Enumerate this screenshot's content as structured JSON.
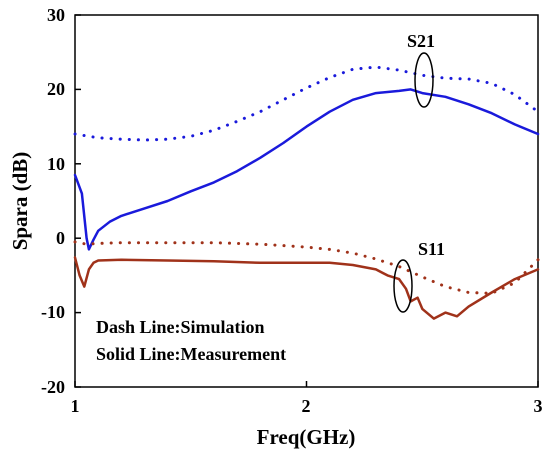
{
  "chart_data": {
    "type": "line",
    "xlabel": "Freq(GHz)",
    "ylabel": "Spara (dB)",
    "xlim": [
      1,
      3
    ],
    "ylim": [
      -20,
      30
    ],
    "x_ticks": [
      "1",
      "2",
      "3"
    ],
    "y_ticks": [
      "30",
      "20",
      "10",
      "0",
      "-10",
      "-20"
    ],
    "grid": false,
    "annotations": [
      "S21",
      "S11",
      "Dash Line:Simulation",
      "Solid Line:Measurement"
    ],
    "colors": {
      "s21": "#1a1adb",
      "s11": "#a0321a"
    },
    "series": [
      {
        "style": "dotted",
        "color": "#1a1adb",
        "x": [
          1.0,
          1.1,
          1.2,
          1.3,
          1.4,
          1.5,
          1.6,
          1.7,
          1.8,
          1.9,
          2.0,
          2.1,
          2.2,
          2.3,
          2.4,
          2.5,
          2.6,
          2.7,
          2.8,
          2.9,
          3.0
        ],
        "y": [
          14.0,
          13.5,
          13.3,
          13.2,
          13.3,
          13.7,
          14.5,
          15.7,
          17.0,
          18.6,
          20.2,
          21.6,
          22.7,
          23.0,
          22.6,
          21.9,
          21.5,
          21.4,
          20.8,
          19.3,
          17.0
        ]
      },
      {
        "style": "solid",
        "color": "#1a1adb",
        "x": [
          1.0,
          1.03,
          1.05,
          1.06,
          1.08,
          1.1,
          1.15,
          1.2,
          1.3,
          1.4,
          1.5,
          1.6,
          1.7,
          1.8,
          1.9,
          2.0,
          2.1,
          2.2,
          2.3,
          2.4,
          2.45,
          2.5,
          2.6,
          2.7,
          2.8,
          2.9,
          3.0
        ],
        "y": [
          8.5,
          6.0,
          0.0,
          -1.5,
          -0.2,
          1.0,
          2.2,
          3.0,
          4.0,
          5.0,
          6.3,
          7.5,
          9.0,
          10.8,
          12.8,
          15.0,
          17.0,
          18.6,
          19.5,
          19.8,
          20.0,
          19.5,
          19.0,
          18.0,
          16.8,
          15.3,
          14.0
        ]
      },
      {
        "style": "dotted",
        "color": "#a0321a",
        "x": [
          1.0,
          1.05,
          1.1,
          1.2,
          1.3,
          1.4,
          1.5,
          1.6,
          1.7,
          1.8,
          1.9,
          2.0,
          2.1,
          2.2,
          2.3,
          2.4,
          2.5,
          2.6,
          2.7,
          2.8,
          2.9,
          3.0
        ],
        "y": [
          -0.5,
          -0.8,
          -0.7,
          -0.6,
          -0.6,
          -0.6,
          -0.6,
          -0.6,
          -0.7,
          -0.8,
          -1.0,
          -1.2,
          -1.5,
          -2.0,
          -2.8,
          -3.8,
          -5.2,
          -6.5,
          -7.3,
          -7.4,
          -6.0,
          -2.9
        ]
      },
      {
        "style": "solid",
        "color": "#a0321a",
        "x": [
          1.0,
          1.02,
          1.04,
          1.06,
          1.08,
          1.1,
          1.2,
          1.4,
          1.6,
          1.8,
          2.0,
          2.1,
          2.2,
          2.3,
          2.35,
          2.4,
          2.43,
          2.45,
          2.48,
          2.5,
          2.55,
          2.6,
          2.65,
          2.7,
          2.8,
          2.9,
          3.0
        ],
        "y": [
          -2.6,
          -5.0,
          -6.5,
          -4.2,
          -3.3,
          -3.0,
          -2.9,
          -3.0,
          -3.1,
          -3.3,
          -3.3,
          -3.3,
          -3.6,
          -4.2,
          -5.0,
          -5.5,
          -6.8,
          -8.5,
          -8.0,
          -9.5,
          -10.8,
          -10.0,
          -10.5,
          -9.2,
          -7.3,
          -5.5,
          -4.2
        ]
      }
    ]
  }
}
